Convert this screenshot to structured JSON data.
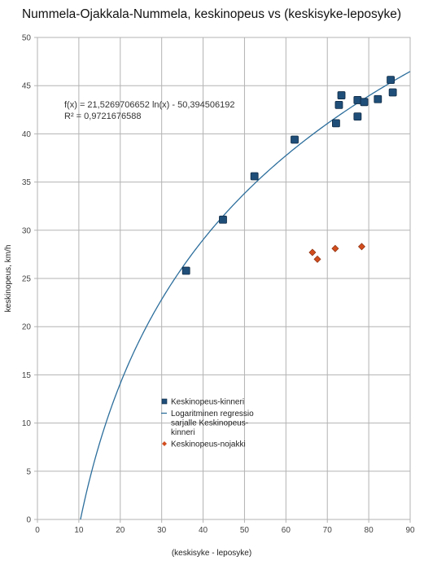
{
  "chart_data": {
    "type": "scatter",
    "title": "Nummela-Ojakkala-Nummela, keskinopeus vs (keskisyke-leposyke)",
    "xlabel": "(keskisyke - leposyke)",
    "ylabel": "keskinopeus, km/h",
    "xlim": [
      0,
      90
    ],
    "ylim": [
      0,
      50
    ],
    "x_ticks": [
      0,
      10,
      20,
      30,
      40,
      50,
      60,
      70,
      80,
      90
    ],
    "y_ticks": [
      0,
      5,
      10,
      15,
      20,
      25,
      30,
      35,
      40,
      45,
      50
    ],
    "grid": true,
    "legend_position": "lower-center",
    "series": [
      {
        "name": "Keskinopeus-kinneri",
        "marker": "square",
        "color": "#1f4e79",
        "points": [
          {
            "x": 35.9,
            "y": 25.8
          },
          {
            "x": 44.8,
            "y": 31.1
          },
          {
            "x": 52.4,
            "y": 35.6
          },
          {
            "x": 62.1,
            "y": 39.4
          },
          {
            "x": 72.1,
            "y": 41.1
          },
          {
            "x": 72.8,
            "y": 43.0
          },
          {
            "x": 73.4,
            "y": 44.0
          },
          {
            "x": 77.3,
            "y": 43.5
          },
          {
            "x": 77.3,
            "y": 41.8
          },
          {
            "x": 78.9,
            "y": 43.3
          },
          {
            "x": 82.2,
            "y": 43.6
          },
          {
            "x": 85.3,
            "y": 45.6
          },
          {
            "x": 85.8,
            "y": 44.3
          }
        ]
      },
      {
        "name": "Keskinopeus-nojakki",
        "marker": "diamond",
        "color": "#d24d1e",
        "points": [
          {
            "x": 66.4,
            "y": 27.7
          },
          {
            "x": 67.6,
            "y": 27.0
          },
          {
            "x": 71.9,
            "y": 28.1
          },
          {
            "x": 78.3,
            "y": 28.3
          }
        ]
      }
    ],
    "trendline": {
      "name": "Logaritminen regressio sarjalle Keskinopeus-kinneri",
      "type": "logarithmic",
      "a": 21.5269706652,
      "b": -50.394506192,
      "color": "#2c6e9c",
      "equation_text": "f(x) = 21,5269706652 ln(x) - 50,394506192",
      "r2_text": "R² = 0,9721676588"
    },
    "legend_entries": [
      {
        "label_lines": [
          "Keskinopeus-kinneri"
        ],
        "kind": "square"
      },
      {
        "label_lines": [
          "Logaritminen regressio",
          "sarjalle Keskinopeus-",
          "kinneri"
        ],
        "kind": "line"
      },
      {
        "label_lines": [
          "Keskinopeus-nojakki"
        ],
        "kind": "diamond"
      }
    ]
  }
}
